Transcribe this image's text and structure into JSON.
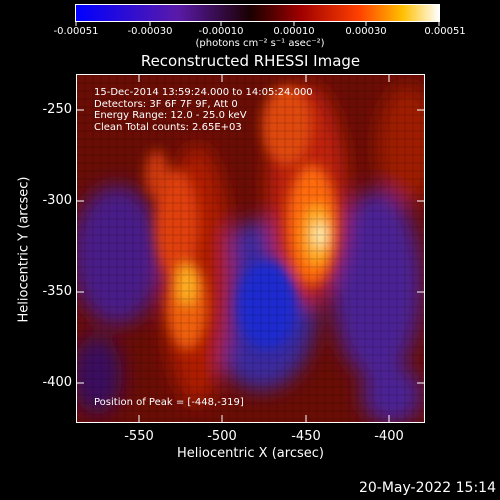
{
  "colorbar": {
    "tick_labels": [
      "-0.00051",
      "-0.00030",
      "-0.00010",
      "0.00010",
      "0.00030",
      "0.00051"
    ],
    "units_label": "(photons cm⁻² s⁻¹ asec⁻²)"
  },
  "plot": {
    "title": "Reconstructed RHESSI Image",
    "xlabel": "Heliocentric X (arcsec)",
    "ylabel": "Heliocentric Y (arcsec)",
    "x_ticks": [
      "-550",
      "-500",
      "-450",
      "-400"
    ],
    "y_ticks": [
      "-250",
      "-300",
      "-350",
      "-400"
    ],
    "info_lines": [
      "15-Dec-2014 13:59:24.000 to 14:05:24.000",
      "Detectors: 3F 6F 7F 9F, Att 0",
      "Energy Range: 12.0 - 25.0 keV",
      "Clean    Total counts: 2.65E+03"
    ],
    "peak_text": "Position of Peak = [-448,-319]"
  },
  "footer": {
    "timestamp": "20-May-2022 15:14"
  },
  "colors": {
    "background": "#000000",
    "text": "#ffffff"
  }
}
